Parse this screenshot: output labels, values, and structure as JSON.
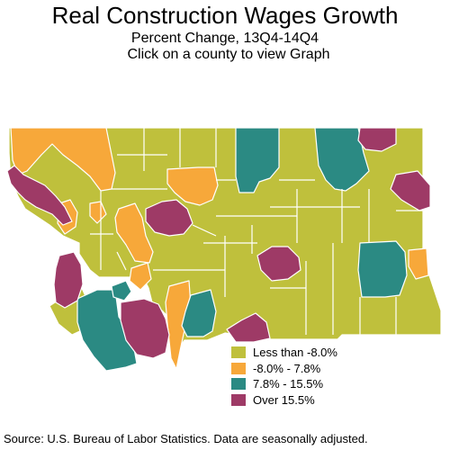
{
  "header": {
    "title": "Real Construction Wages Growth",
    "subtitle": "Percent Change, 13Q4-14Q4",
    "instruction": "Click on a county to view Graph"
  },
  "legend": [
    {
      "label": "Less than -8.0%",
      "color": "#bfc03c"
    },
    {
      "label": "-8.0% -  7.8%",
      "color": "#f7a83a"
    },
    {
      "label": "7.8% - 15.5%",
      "color": "#2b8a83"
    },
    {
      "label": "Over 15.5%",
      "color": "#9e3a66"
    }
  ],
  "footer": {
    "source": "Source: U.S. Bureau of Labor Statistics. Data are seasonally adjusted."
  }
}
